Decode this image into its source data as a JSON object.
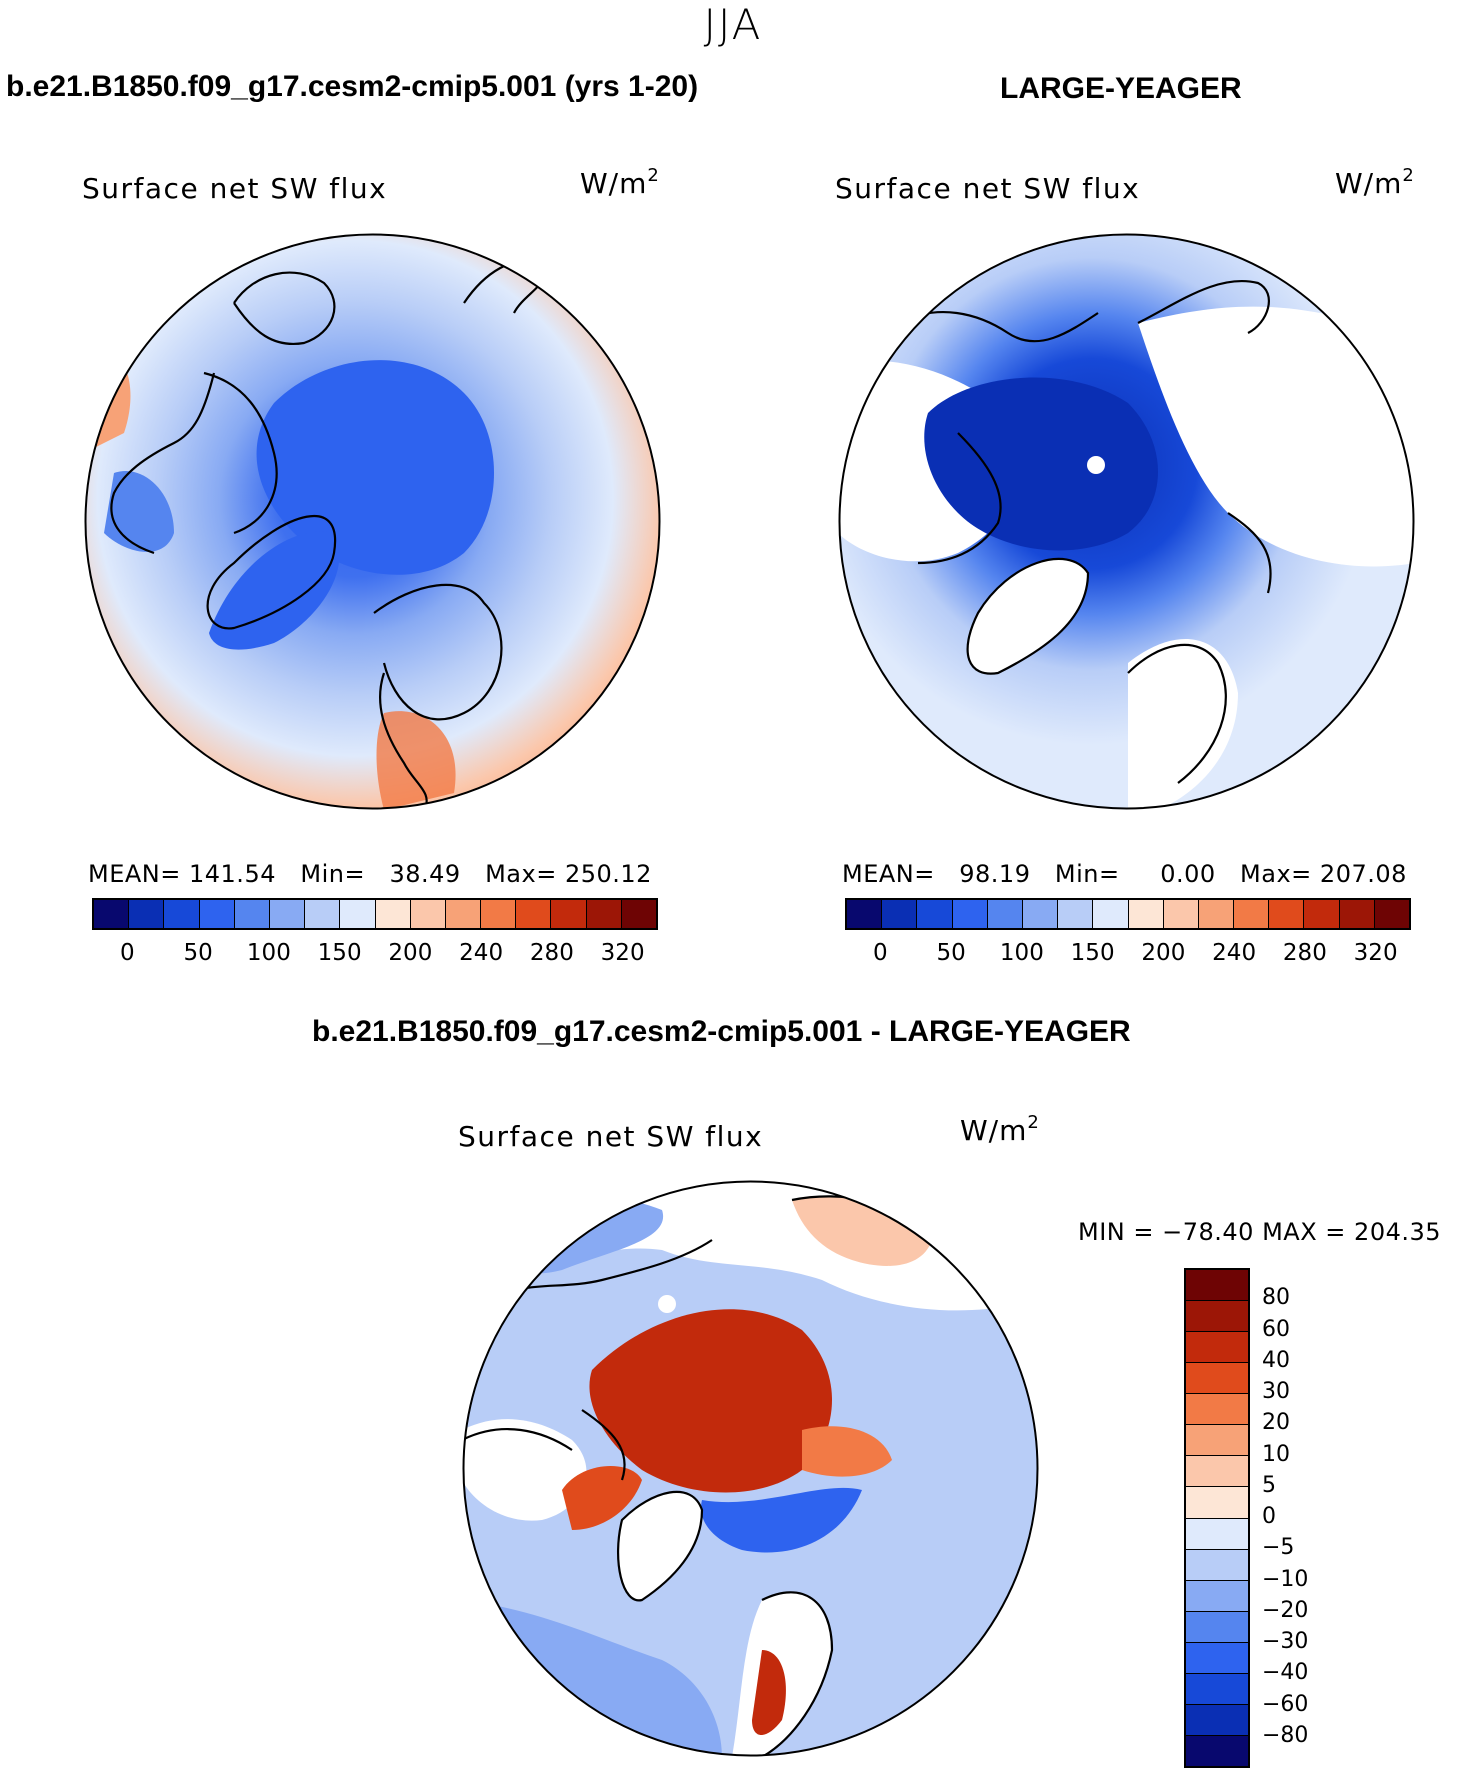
{
  "figure": {
    "season": "JJA"
  },
  "colors": {
    "abs_palette": [
      "#08086e",
      "#0a2fb4",
      "#1749d8",
      "#2e63ef",
      "#5585ef",
      "#88aaf3",
      "#b8cdf7",
      "#dfeafc",
      "#fde6d6",
      "#fbc7ab",
      "#f7a277",
      "#f27a46",
      "#e04b1c",
      "#c22a0c",
      "#9c1606",
      "#6e0404"
    ],
    "diff_palette": [
      "#08086e",
      "#0a2fb4",
      "#1749d8",
      "#2e63ef",
      "#5585ef",
      "#88aaf3",
      "#b8cdf7",
      "#dfeafc",
      "#fde6d6",
      "#fbc7ab",
      "#f7a277",
      "#f27a46",
      "#e04b1c",
      "#c22a0c",
      "#9c1606",
      "#6e0404"
    ]
  },
  "chart_data": [
    {
      "type": "heatmap",
      "projection": "north-polar-stereographic",
      "case_title": "b.e21.B1850.f09_g17.cesm2-cmip5.001 (yrs 1-20)",
      "title": "Surface net SW flux",
      "units_base": "W/m",
      "units_exp": "2",
      "stats": {
        "mean_label": "MEAN=",
        "mean": "141.54",
        "min_label": "Min=",
        "min": "38.49",
        "max_label": "Max=",
        "max": "250.12"
      },
      "colorbar": {
        "orientation": "horizontal",
        "levels": [
          0,
          25,
          50,
          75,
          100,
          125,
          150,
          175,
          200,
          220,
          240,
          260,
          280,
          300,
          320
        ],
        "tick_labels": [
          "0",
          "50",
          "100",
          "150",
          "200",
          "240",
          "280",
          "320"
        ]
      }
    },
    {
      "type": "heatmap",
      "projection": "north-polar-stereographic",
      "case_title": "LARGE-YEAGER",
      "title": "Surface net SW flux",
      "units_base": "W/m",
      "units_exp": "2",
      "stats": {
        "mean_label": "MEAN=",
        "mean": "98.19",
        "min_label": "Min=",
        "min": "0.00",
        "max_label": "Max=",
        "max": "207.08"
      },
      "colorbar": {
        "orientation": "horizontal",
        "levels": [
          0,
          25,
          50,
          75,
          100,
          125,
          150,
          175,
          200,
          220,
          240,
          260,
          280,
          300,
          320
        ],
        "tick_labels": [
          "0",
          "50",
          "100",
          "150",
          "200",
          "240",
          "280",
          "320"
        ]
      }
    },
    {
      "type": "heatmap",
      "projection": "north-polar-stereographic",
      "case_title": "b.e21.B1850.f09_g17.cesm2-cmip5.001 - LARGE-YEAGER",
      "title": "Surface net SW flux",
      "units_base": "W/m",
      "units_exp": "2",
      "stats": {
        "min_label": "MIN =",
        "min": "−78.40",
        "max_label": "MAX =",
        "max": "204.35"
      },
      "colorbar": {
        "orientation": "vertical",
        "levels": [
          80,
          60,
          40,
          30,
          20,
          10,
          5,
          0,
          -5,
          -10,
          -20,
          -30,
          -40,
          -60,
          -80
        ],
        "tick_labels": [
          "80",
          "60",
          "40",
          "30",
          "20",
          "10",
          "5",
          "0",
          "−5",
          "−10",
          "−20",
          "−30",
          "−40",
          "−60",
          "−80"
        ]
      }
    }
  ]
}
